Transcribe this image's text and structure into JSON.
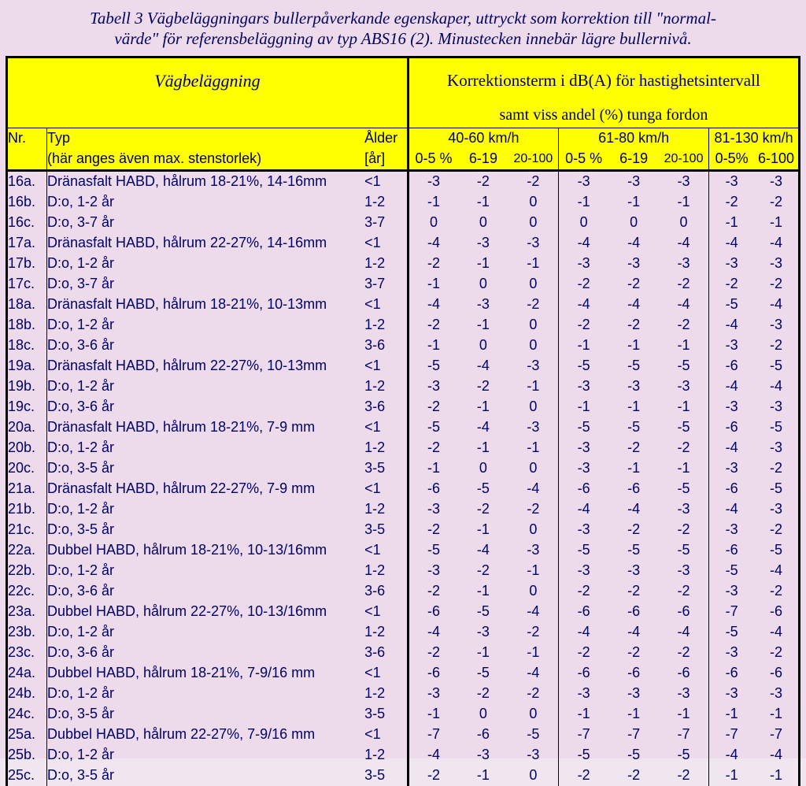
{
  "caption_l1": "Tabell 3 Vägbeläggningars bullerpåverkande egenskaper, uttryckt som korrektion till \"normal-",
  "caption_l2": "värde\" för referensbeläggning av typ ABS16 (2). Minustecken innebär lägre bullernivå.",
  "head": {
    "vagbelaggning": "Vägbeläggning",
    "korr_title": "Korrektionsterm i dB(A) för hastighetsintervall",
    "korr_sub": "samt viss andel (%) tunga fordon",
    "nr": "Nr.",
    "typ": "Typ",
    "typ_sub": "(här anges även max. stenstorlek)",
    "alder": "Ålder",
    "alder_unit": "[år]",
    "speed1": "40-60  km/h",
    "speed2": "61-80  km/h",
    "speed3": "81-130 km/h",
    "p1": "0-5 %",
    "p2": "6-19",
    "p3": "20-100",
    "q1": "0-5 %",
    "q2": "6-19",
    "q3": "20-100",
    "r1": "0-5%",
    "r2": "6-100"
  },
  "rows": [
    {
      "nr": "16a.",
      "typ": "Dränasfalt HABD, hålrum 18-21%, 14-16mm",
      "age": "<1",
      "v": [
        "-3",
        "-2",
        "-2",
        "-3",
        "-3",
        "-3",
        "-3",
        "-3"
      ]
    },
    {
      "nr": "16b.",
      "typ": "D:o, 1-2 år",
      "age": "1-2",
      "v": [
        "-1",
        "-1",
        "0",
        "-1",
        "-1",
        "-1",
        "-2",
        "-2"
      ]
    },
    {
      "nr": "16c.",
      "typ": "D:o, 3-7 år",
      "age": "3-7",
      "v": [
        "0",
        "0",
        "0",
        "0",
        "0",
        "0",
        "-1",
        "-1"
      ]
    },
    {
      "nr": "17a.",
      "typ": "Dränasfalt HABD, hålrum 22-27%, 14-16mm",
      "age": "<1",
      "v": [
        "-4",
        "-3",
        "-3",
        "-4",
        "-4",
        "-4",
        "-4",
        "-4"
      ]
    },
    {
      "nr": "17b.",
      "typ": "D:o, 1-2 år",
      "age": "1-2",
      "v": [
        "-2",
        "-1",
        "-1",
        "-3",
        "-3",
        "-3",
        "-3",
        "-3"
      ]
    },
    {
      "nr": "17c.",
      "typ": "D:o, 3-7 år",
      "age": "3-7",
      "v": [
        "-1",
        "0",
        "0",
        "-2",
        "-2",
        "-2",
        "-2",
        "-2"
      ]
    },
    {
      "nr": "18a.",
      "typ": "Dränasfalt HABD, hålrum 18-21%, 10-13mm",
      "age": "<1",
      "v": [
        "-4",
        "-3",
        "-2",
        "-4",
        "-4",
        "-4",
        "-5",
        "-4"
      ]
    },
    {
      "nr": "18b.",
      "typ": "D:o, 1-2 år",
      "age": "1-2",
      "v": [
        "-2",
        "-1",
        "0",
        "-2",
        "-2",
        "-2",
        "-4",
        "-3"
      ]
    },
    {
      "nr": "18c.",
      "typ": "D:o, 3-6 år",
      "age": "3-6",
      "v": [
        "-1",
        "0",
        "0",
        "-1",
        "-1",
        "-1",
        "-3",
        "-2"
      ]
    },
    {
      "nr": "19a.",
      "typ": "Dränasfalt HABD, hålrum 22-27%, 10-13mm",
      "age": "<1",
      "v": [
        "-5",
        "-4",
        "-3",
        "-5",
        "-5",
        "-5",
        "-6",
        "-5"
      ]
    },
    {
      "nr": "19b.",
      "typ": "D:o, 1-2 år",
      "age": "1-2",
      "v": [
        "-3",
        "-2",
        "-1",
        "-3",
        "-3",
        "-3",
        "-4",
        "-4"
      ]
    },
    {
      "nr": "19c.",
      "typ": "D:o, 3-6 år",
      "age": "3-6",
      "v": [
        "-2",
        "-1",
        "0",
        "-1",
        "-1",
        "-1",
        "-3",
        "-3"
      ]
    },
    {
      "nr": "20a.",
      "typ": "Dränasfalt HABD, hålrum 18-21%, 7-9 mm",
      "age": "<1",
      "v": [
        "-5",
        "-4",
        "-3",
        "-5",
        "-5",
        "-5",
        "-6",
        "-5"
      ]
    },
    {
      "nr": "20b.",
      "typ": "D:o, 1-2 år",
      "age": "1-2",
      "v": [
        "-2",
        "-1",
        "-1",
        "-3",
        "-2",
        "-2",
        "-4",
        "-3"
      ]
    },
    {
      "nr": "20c.",
      "typ": "D:o, 3-5 år",
      "age": "3-5",
      "v": [
        "-1",
        "0",
        "0",
        "-3",
        "-1",
        "-1",
        "-3",
        "-2"
      ]
    },
    {
      "nr": "21a.",
      "typ": "Dränasfalt HABD, hålrum 22-27%, 7-9 mm",
      "age": "<1",
      "v": [
        "-6",
        "-5",
        "-4",
        "-6",
        "-6",
        "-5",
        "-6",
        "-5"
      ]
    },
    {
      "nr": "21b.",
      "typ": "D:o, 1-2 år",
      "age": "1-2",
      "v": [
        "-3",
        "-2",
        "-2",
        "-4",
        "-4",
        "-3",
        "-4",
        "-3"
      ]
    },
    {
      "nr": "21c.",
      "typ": "D:o, 3-5 år",
      "age": "3-5",
      "v": [
        "-2",
        "-1",
        "0",
        "-3",
        "-2",
        "-2",
        "-3",
        "-2"
      ]
    },
    {
      "nr": "22a.",
      "typ": "Dubbel HABD, hålrum 18-21%, 10-13/16mm",
      "age": "<1",
      "v": [
        "-5",
        "-4",
        "-3",
        "-5",
        "-5",
        "-5",
        "-6",
        "-5"
      ]
    },
    {
      "nr": "22b.",
      "typ": "D:o, 1-2 år",
      "age": "1-2",
      "v": [
        "-3",
        "-2",
        "-1",
        "-3",
        "-3",
        "-3",
        "-5",
        "-4"
      ]
    },
    {
      "nr": "22c.",
      "typ": "D:o, 3-6 år",
      "age": "3-6",
      "v": [
        "-2",
        "-1",
        "0",
        "-2",
        "-2",
        "-2",
        "-3",
        "-2"
      ]
    },
    {
      "nr": "23a.",
      "typ": "Dubbel HABD, hålrum 22-27%, 10-13/16mm",
      "age": "<1",
      "v": [
        "-6",
        "-5",
        "-4",
        "-6",
        "-6",
        "-6",
        "-7",
        "-6"
      ]
    },
    {
      "nr": "23b.",
      "typ": "D:o, 1-2 år",
      "age": "1-2",
      "v": [
        "-4",
        "-3",
        "-2",
        "-4",
        "-4",
        "-4",
        "-5",
        "-4"
      ]
    },
    {
      "nr": "23c.",
      "typ": "D:o, 3-6 år",
      "age": "3-6",
      "v": [
        "-2",
        "-1",
        "-1",
        "-2",
        "-2",
        "-2",
        "-3",
        "-2"
      ]
    },
    {
      "nr": "24a.",
      "typ": "Dubbel HABD, hålrum 18-21%, 7-9/16 mm",
      "age": "<1",
      "v": [
        "-6",
        "-5",
        "-4",
        "-6",
        "-6",
        "-6",
        "-6",
        "-6"
      ]
    },
    {
      "nr": "24b.",
      "typ": "D:o, 1-2 år",
      "age": "1-2",
      "v": [
        "-3",
        "-2",
        "-2",
        "-3",
        "-3",
        "-3",
        "-3",
        "-3"
      ]
    },
    {
      "nr": "24c.",
      "typ": "D:o, 3-5 år",
      "age": "3-5",
      "v": [
        "-1",
        "0",
        "0",
        "-1",
        "-1",
        "-1",
        "-1",
        "-1"
      ]
    },
    {
      "nr": "25a.",
      "typ": "Dubbel HABD, hålrum 22-27%, 7-9/16 mm",
      "age": "<1",
      "v": [
        "-7",
        "-6",
        "-5",
        "-7",
        "-7",
        "-7",
        "-7",
        "-7"
      ]
    },
    {
      "nr": "25b.",
      "typ": "D:o, 1-2 år",
      "age": "1-2",
      "v": [
        "-4",
        "-3",
        "-3",
        "-5",
        "-5",
        "-5",
        "-4",
        "-4"
      ]
    },
    {
      "nr": "25c.",
      "typ": "D:o, 3-5 år",
      "age": "3-5",
      "v": [
        "-2",
        "-1",
        "0",
        "-2",
        "-2",
        "-2",
        "-1",
        "-1"
      ]
    }
  ],
  "style": {
    "header_bg": "#ffff00",
    "page_bg": "#eddbec",
    "text_color": "#000066",
    "border_color": "#000000",
    "caption_fontsize": 21,
    "body_fontsize": 18
  }
}
